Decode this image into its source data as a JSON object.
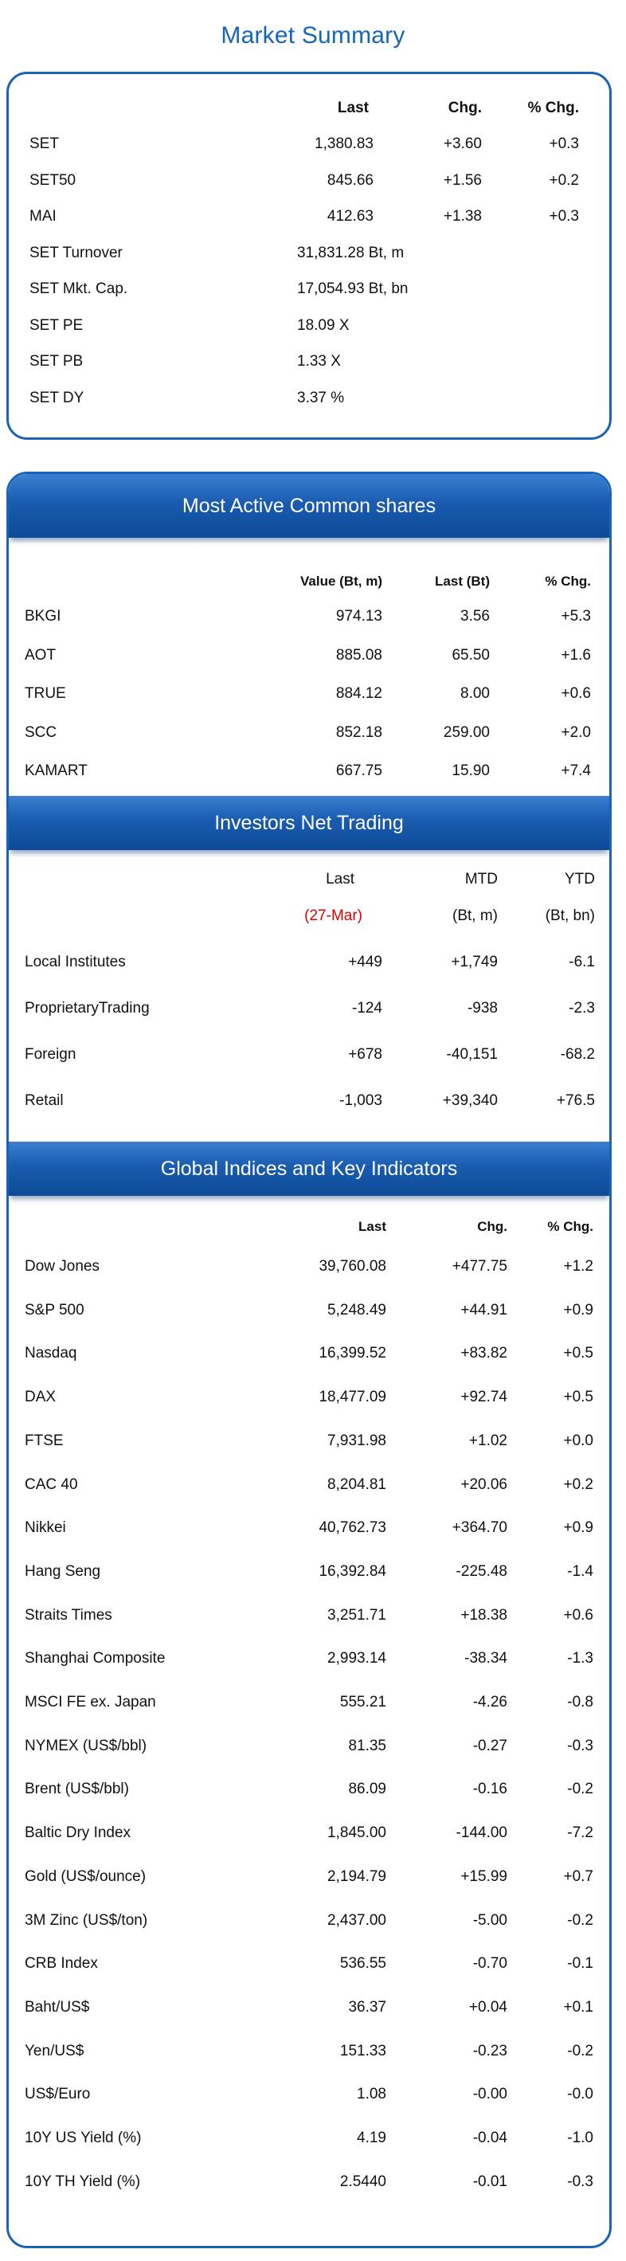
{
  "market_summary": {
    "title": "Market Summary",
    "headers": {
      "last": "Last",
      "chg": "Chg.",
      "pct": "% Chg."
    },
    "rows": [
      {
        "name": "SET",
        "last": "1,380.83",
        "chg": "+3.60",
        "pct": "+0.3"
      },
      {
        "name": "SET50",
        "last": "845.66",
        "chg": "+1.56",
        "pct": "+0.2"
      },
      {
        "name": "MAI",
        "last": "412.63",
        "chg": "+1.38",
        "pct": "+0.3"
      },
      {
        "name": "SET Turnover",
        "last": "31,831.28 Bt, m",
        "chg": "",
        "pct": ""
      },
      {
        "name": "SET Mkt. Cap.",
        "last": "17,054.93 Bt, bn",
        "chg": "",
        "pct": ""
      },
      {
        "name": "SET PE",
        "last": "18.09 X",
        "chg": "",
        "pct": ""
      },
      {
        "name": "SET PB",
        "last": "1.33 X",
        "chg": "",
        "pct": ""
      },
      {
        "name": "SET DY",
        "last": "3.37 %",
        "chg": "",
        "pct": ""
      }
    ]
  },
  "most_active": {
    "title": "Most Active Common shares",
    "headers": {
      "value": "Value (Bt, m)",
      "last": "Last (Bt)",
      "pct": "% Chg."
    },
    "rows": [
      {
        "name": "BKGI",
        "value": "974.13",
        "last": "3.56",
        "pct": "+5.3"
      },
      {
        "name": "AOT",
        "value": "885.08",
        "last": "65.50",
        "pct": "+1.6"
      },
      {
        "name": "TRUE",
        "value": "884.12",
        "last": "8.00",
        "pct": "+0.6"
      },
      {
        "name": "SCC",
        "value": "852.18",
        "last": "259.00",
        "pct": "+2.0"
      },
      {
        "name": "KAMART",
        "value": "667.75",
        "last": "15.90",
        "pct": "+7.4"
      }
    ]
  },
  "investors": {
    "title": "Investors Net Trading",
    "headers": {
      "last": "Last",
      "mtd": "MTD",
      "ytd": "YTD"
    },
    "subheaders": {
      "last": "(27-Mar)",
      "mtd": "(Bt, m)",
      "ytd": "(Bt, bn)"
    },
    "rows": [
      {
        "name": "Local Institutes",
        "last": "+449",
        "mtd": "+1,749",
        "ytd": "-6.1"
      },
      {
        "name": "ProprietaryTrading",
        "last": "-124",
        "mtd": "-938",
        "ytd": "-2.3"
      },
      {
        "name": "Foreign",
        "last": "+678",
        "mtd": "-40,151",
        "ytd": "-68.2"
      },
      {
        "name": "Retail",
        "last": "-1,003",
        "mtd": "+39,340",
        "ytd": "+76.5"
      }
    ]
  },
  "global": {
    "title": "Global Indices and Key Indicators",
    "headers": {
      "last": "Last",
      "chg": "Chg.",
      "pct": "% Chg."
    },
    "rows": [
      {
        "name": "Dow Jones",
        "last": "39,760.08",
        "chg": "+477.75",
        "pct": "+1.2"
      },
      {
        "name": "S&P 500",
        "last": "5,248.49",
        "chg": "+44.91",
        "pct": "+0.9"
      },
      {
        "name": "Nasdaq",
        "last": "16,399.52",
        "chg": "+83.82",
        "pct": "+0.5"
      },
      {
        "name": "DAX",
        "last": "18,477.09",
        "chg": "+92.74",
        "pct": "+0.5"
      },
      {
        "name": "FTSE",
        "last": "7,931.98",
        "chg": "+1.02",
        "pct": "+0.0"
      },
      {
        "name": "CAC 40",
        "last": "8,204.81",
        "chg": "+20.06",
        "pct": "+0.2"
      },
      {
        "name": "Nikkei",
        "last": "40,762.73",
        "chg": "+364.70",
        "pct": "+0.9"
      },
      {
        "name": "Hang Seng",
        "last": "16,392.84",
        "chg": "-225.48",
        "pct": "-1.4"
      },
      {
        "name": "Straits Times",
        "last": "3,251.71",
        "chg": "+18.38",
        "pct": "+0.6"
      },
      {
        "name": "Shanghai Composite",
        "last": "2,993.14",
        "chg": "-38.34",
        "pct": "-1.3"
      },
      {
        "name": "MSCI FE ex. Japan",
        "last": "555.21",
        "chg": "-4.26",
        "pct": "-0.8"
      },
      {
        "name": "NYMEX (US$/bbl)",
        "last": "81.35",
        "chg": "-0.27",
        "pct": "-0.3"
      },
      {
        "name": "Brent (US$/bbl)",
        "last": "86.09",
        "chg": "-0.16",
        "pct": "-0.2"
      },
      {
        "name": "Baltic Dry Index",
        "last": "1,845.00",
        "chg": "-144.00",
        "pct": "-7.2"
      },
      {
        "name": "Gold (US$/ounce)",
        "last": "2,194.79",
        "chg": "+15.99",
        "pct": "+0.7"
      },
      {
        "name": "3M Zinc (US$/ton)",
        "last": "2,437.00",
        "chg": "-5.00",
        "pct": "-0.2"
      },
      {
        "name": "CRB Index",
        "last": "536.55",
        "chg": "-0.70",
        "pct": "-0.1"
      },
      {
        "name": "Baht/US$",
        "last": "36.37",
        "chg": "+0.04",
        "pct": "+0.1"
      },
      {
        "name": "Yen/US$",
        "last": "151.33",
        "chg": "-0.23",
        "pct": "-0.2"
      },
      {
        "name": "US$/Euro",
        "last": "1.08",
        "chg": "-0.00",
        "pct": "-0.0"
      },
      {
        "name": "10Y US Yield (%)",
        "last": "4.19",
        "chg": "-0.04",
        "pct": "-1.0"
      },
      {
        "name": "10Y TH Yield (%)",
        "last": "2.5440",
        "chg": "-0.01",
        "pct": "-0.3"
      }
    ]
  },
  "colors": {
    "accent": "#1565b8",
    "banner": "#1a5cb0",
    "highlight": "#e00000"
  }
}
